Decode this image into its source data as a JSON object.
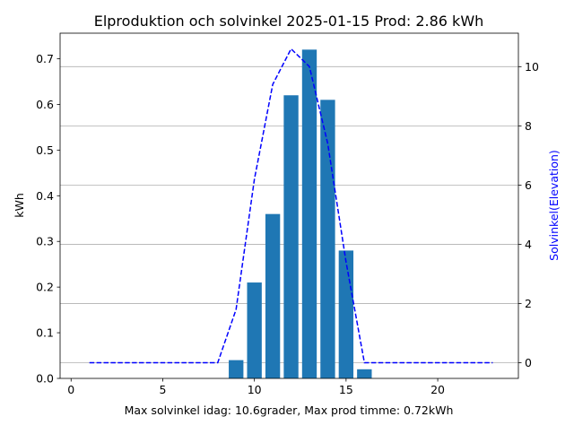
{
  "chart_data": {
    "type": "bar",
    "title": "Elproduktion och solvinkel 2025-01-15 Prod: 2.86 kWh",
    "xlabel": "Max solvinkel idag: 10.6grader, Max prod timme: 0.72kWh",
    "ylabel": "kWh",
    "y2label": "Solvinkel(Elevation)",
    "xlim": [
      -0.6,
      24.4
    ],
    "ylim": [
      0,
      0.756
    ],
    "y2lim": [
      -0.53,
      11.13
    ],
    "xticks": [
      0,
      5,
      10,
      15,
      20
    ],
    "yticks": [
      0.0,
      0.1,
      0.2,
      0.3,
      0.4,
      0.5,
      0.6,
      0.7
    ],
    "y2ticks": [
      0,
      2,
      4,
      6,
      8,
      10
    ],
    "grid": "horizontal on secondary axis",
    "bar_color": "#1f77b4",
    "line_color": "#0000ff",
    "series": [
      {
        "type": "bar",
        "axis": "left",
        "x": [
          9,
          10,
          11,
          12,
          13,
          14,
          15,
          16
        ],
        "values": [
          0.04,
          0.21,
          0.36,
          0.62,
          0.72,
          0.61,
          0.28,
          0.02
        ]
      },
      {
        "type": "line",
        "axis": "right",
        "style": "dashed",
        "x": [
          1,
          2,
          3,
          4,
          5,
          6,
          7,
          8,
          9,
          10,
          11,
          12,
          13,
          14,
          15,
          16,
          17,
          18,
          19,
          20,
          21,
          22,
          23
        ],
        "values": [
          0,
          0,
          0,
          0,
          0,
          0,
          0,
          0,
          1.8,
          6.2,
          9.4,
          10.6,
          10.0,
          7.4,
          3.4,
          0,
          0,
          0,
          0,
          0,
          0,
          0,
          0
        ]
      }
    ]
  }
}
